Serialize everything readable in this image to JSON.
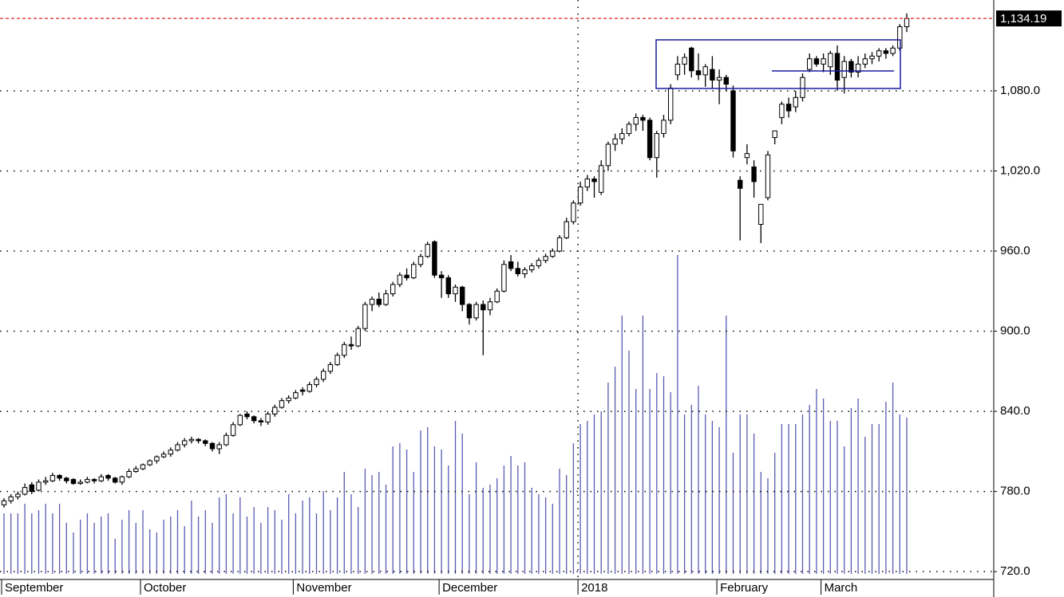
{
  "chart_data": {
    "type": "candlestick",
    "categories": [
      "September",
      null,
      null,
      null,
      null,
      null,
      null,
      null,
      null,
      null,
      null,
      null,
      null,
      null,
      null,
      null,
      null,
      null,
      null,
      null,
      "October",
      null,
      null,
      null,
      null,
      null,
      null,
      null,
      null,
      null,
      null,
      null,
      null,
      null,
      null,
      null,
      null,
      null,
      null,
      null,
      null,
      null,
      "November",
      null,
      null,
      null,
      null,
      null,
      null,
      null,
      null,
      null,
      null,
      null,
      null,
      null,
      null,
      null,
      null,
      null,
      null,
      null,
      null,
      "December",
      null,
      null,
      null,
      null,
      null,
      null,
      null,
      null,
      null,
      null,
      null,
      null,
      null,
      null,
      null,
      null,
      null,
      null,
      null,
      "2018",
      null,
      null,
      null,
      null,
      null,
      null,
      null,
      null,
      null,
      null,
      null,
      null,
      null,
      null,
      null,
      null,
      null,
      null,
      null,
      "February",
      null,
      null,
      null,
      null,
      null,
      null,
      null,
      null,
      null,
      null,
      null,
      null,
      null,
      null,
      "March",
      null,
      null,
      null,
      null,
      null,
      null,
      null,
      null,
      null,
      null,
      null,
      null
    ],
    "candles": [
      [
        770,
        775,
        768,
        773
      ],
      [
        773,
        778,
        771,
        776
      ],
      [
        776,
        780,
        774,
        778
      ],
      [
        778,
        786,
        777,
        783
      ],
      [
        785,
        787,
        778,
        780
      ],
      [
        781,
        789,
        780,
        787
      ],
      [
        787,
        791,
        785,
        788
      ],
      [
        788,
        794,
        787,
        792
      ],
      [
        792,
        793,
        788,
        790
      ],
      [
        790,
        791,
        786,
        788
      ],
      [
        789,
        790,
        785,
        786
      ],
      [
        786,
        789,
        785,
        787
      ],
      [
        787,
        791,
        786,
        789
      ],
      [
        789,
        790,
        786,
        788
      ],
      [
        788,
        793,
        787,
        791
      ],
      [
        792,
        793,
        788,
        790
      ],
      [
        790,
        791,
        786,
        787
      ],
      [
        787,
        792,
        785,
        791
      ],
      [
        791,
        797,
        790,
        795
      ],
      [
        795,
        799,
        794,
        797
      ],
      [
        797,
        801,
        796,
        800
      ],
      [
        800,
        804,
        799,
        803
      ],
      [
        803,
        807,
        801,
        806
      ],
      [
        806,
        810,
        805,
        808
      ],
      [
        808,
        813,
        806,
        811
      ],
      [
        811,
        817,
        810,
        815
      ],
      [
        815,
        820,
        813,
        818
      ],
      [
        818,
        821,
        816,
        819
      ],
      [
        819,
        820,
        816,
        818
      ],
      [
        818,
        819,
        814,
        816
      ],
      [
        816,
        817,
        810,
        812
      ],
      [
        812,
        817,
        808,
        815
      ],
      [
        815,
        824,
        814,
        822
      ],
      [
        822,
        832,
        821,
        830
      ],
      [
        830,
        838,
        829,
        837
      ],
      [
        838,
        840,
        834,
        836
      ],
      [
        836,
        837,
        831,
        833
      ],
      [
        833,
        835,
        829,
        832
      ],
      [
        832,
        840,
        830,
        838
      ],
      [
        838,
        845,
        836,
        843
      ],
      [
        843,
        850,
        842,
        848
      ],
      [
        848,
        852,
        846,
        850
      ],
      [
        850,
        856,
        849,
        854
      ],
      [
        856,
        858,
        852,
        855
      ],
      [
        855,
        862,
        854,
        860
      ],
      [
        860,
        866,
        858,
        864
      ],
      [
        864,
        872,
        862,
        870
      ],
      [
        870,
        877,
        868,
        875
      ],
      [
        875,
        884,
        874,
        882
      ],
      [
        882,
        892,
        880,
        890
      ],
      [
        890,
        896,
        886,
        889
      ],
      [
        889,
        904,
        888,
        902
      ],
      [
        902,
        922,
        900,
        920
      ],
      [
        920,
        926,
        915,
        924
      ],
      [
        924,
        929,
        918,
        920
      ],
      [
        920,
        931,
        919,
        928
      ],
      [
        928,
        937,
        926,
        935
      ],
      [
        935,
        944,
        933,
        942
      ],
      [
        942,
        947,
        938,
        940
      ],
      [
        940,
        952,
        939,
        950
      ],
      [
        950,
        958,
        948,
        956
      ],
      [
        956,
        967,
        955,
        965
      ],
      [
        967,
        968,
        940,
        942
      ],
      [
        942,
        945,
        925,
        940
      ],
      [
        940,
        942,
        925,
        928
      ],
      [
        928,
        935,
        922,
        933
      ],
      [
        933,
        934,
        915,
        920
      ],
      [
        920,
        921,
        905,
        910
      ],
      [
        910,
        922,
        908,
        920
      ],
      [
        920,
        923,
        882,
        916
      ],
      [
        916,
        925,
        912,
        922
      ],
      [
        922,
        932,
        921,
        930
      ],
      [
        930,
        953,
        929,
        950
      ],
      [
        952,
        957,
        945,
        947
      ],
      [
        947,
        952,
        941,
        943
      ],
      [
        943,
        948,
        940,
        946
      ],
      [
        946,
        951,
        944,
        949
      ],
      [
        949,
        955,
        947,
        953
      ],
      [
        953,
        958,
        951,
        956
      ],
      [
        956,
        962,
        955,
        960
      ],
      [
        960,
        972,
        959,
        970
      ],
      [
        970,
        985,
        969,
        982
      ],
      [
        982,
        998,
        980,
        996
      ],
      [
        996,
        1012,
        994,
        1008
      ],
      [
        1008,
        1017,
        1005,
        1014
      ],
      [
        1014,
        1016,
        1000,
        1012
      ],
      [
        1004,
        1028,
        1002,
        1024
      ],
      [
        1024,
        1042,
        1020,
        1040
      ],
      [
        1040,
        1048,
        1035,
        1044
      ],
      [
        1044,
        1052,
        1040,
        1048
      ],
      [
        1048,
        1057,
        1046,
        1055
      ],
      [
        1055,
        1063,
        1050,
        1060
      ],
      [
        1060,
        1062,
        1050,
        1058
      ],
      [
        1058,
        1060,
        1028,
        1030
      ],
      [
        1030,
        1050,
        1015,
        1048
      ],
      [
        1048,
        1062,
        1045,
        1058
      ],
      [
        1058,
        1085,
        1055,
        1082
      ],
      [
        1092,
        1106,
        1088,
        1100
      ],
      [
        1100,
        1108,
        1092,
        1105
      ],
      [
        1112,
        1113,
        1090,
        1095
      ],
      [
        1095,
        1108,
        1088,
        1092
      ],
      [
        1092,
        1100,
        1083,
        1098
      ],
      [
        1096,
        1106,
        1082,
        1088
      ],
      [
        1088,
        1096,
        1070,
        1090
      ],
      [
        1090,
        1092,
        1080,
        1085
      ],
      [
        1080,
        1084,
        1030,
        1035
      ],
      [
        1013,
        1016,
        968,
        1007
      ],
      [
        1030,
        1040,
        1025,
        1033
      ],
      [
        1023,
        1028,
        1000,
        1012
      ],
      [
        980,
        995,
        966,
        995
      ],
      [
        1000,
        1035,
        998,
        1032
      ],
      [
        1045,
        1050,
        1040,
        1050
      ],
      [
        1060,
        1072,
        1055,
        1070
      ],
      [
        1070,
        1075,
        1060,
        1065
      ],
      [
        1068,
        1080,
        1064,
        1075
      ],
      [
        1075,
        1093,
        1072,
        1090
      ],
      [
        1096,
        1108,
        1094,
        1104
      ],
      [
        1104,
        1106,
        1098,
        1100
      ],
      [
        1100,
        1108,
        1094,
        1104
      ],
      [
        1098,
        1110,
        1092,
        1108
      ],
      [
        1108,
        1114,
        1080,
        1088
      ],
      [
        1090,
        1106,
        1078,
        1102
      ],
      [
        1102,
        1104,
        1090,
        1094
      ],
      [
        1094,
        1106,
        1090,
        1100
      ],
      [
        1100,
        1108,
        1097,
        1104
      ],
      [
        1104,
        1109,
        1100,
        1106
      ],
      [
        1106,
        1112,
        1102,
        1110
      ],
      [
        1110,
        1112,
        1104,
        1108
      ],
      [
        1108,
        1114,
        1106,
        1112
      ],
      [
        1112,
        1130,
        1110,
        1128
      ],
      [
        1128,
        1138,
        1124,
        1134.19
      ]
    ],
    "volume": [
      19,
      19,
      19,
      22,
      19,
      20,
      22,
      19,
      22,
      16,
      13,
      17,
      19,
      16,
      18,
      19,
      11,
      17,
      20,
      16,
      20,
      14,
      13,
      17,
      18,
      20,
      15,
      23,
      18,
      20,
      16,
      24,
      25,
      19,
      24,
      18,
      21,
      16,
      21,
      20,
      17,
      25,
      19,
      23,
      24,
      19,
      26,
      20,
      24,
      32,
      25,
      21,
      33,
      31,
      32,
      28,
      40,
      41,
      39,
      32,
      45,
      46,
      40,
      39,
      34,
      48,
      44,
      25,
      35,
      27,
      28,
      30,
      34,
      37,
      34,
      35,
      27,
      25,
      24,
      22,
      33,
      31,
      41,
      47,
      48,
      50,
      51,
      60,
      65,
      81,
      70,
      58,
      81,
      58,
      63,
      62,
      57,
      100,
      50,
      53,
      59,
      50,
      48,
      46,
      81,
      38,
      50,
      50,
      44,
      32,
      30,
      38,
      47,
      47,
      47,
      50,
      53,
      58,
      55,
      48,
      48,
      40,
      52,
      55,
      43,
      47,
      47,
      54,
      60,
      50,
      49
    ],
    "vlim": [
      0,
      100
    ],
    "ylim": [
      701,
      1148
    ],
    "yticks": [
      {
        "value": 720,
        "label": "720.0"
      },
      {
        "value": 780,
        "label": "780.0"
      },
      {
        "value": 840,
        "label": "840.0"
      },
      {
        "value": 900,
        "label": "900.0"
      },
      {
        "value": 960,
        "label": "960.0"
      },
      {
        "value": 1020,
        "label": "1,020.0"
      },
      {
        "value": 1080,
        "label": "1,080.0"
      }
    ],
    "last_price": {
      "value": 1134.19,
      "label": "1,134.19"
    },
    "grid": true,
    "up_color": "#ffffff",
    "down_color": "#000000",
    "volume_color": "#5a5ab4",
    "last_price_color": "#e02020"
  }
}
